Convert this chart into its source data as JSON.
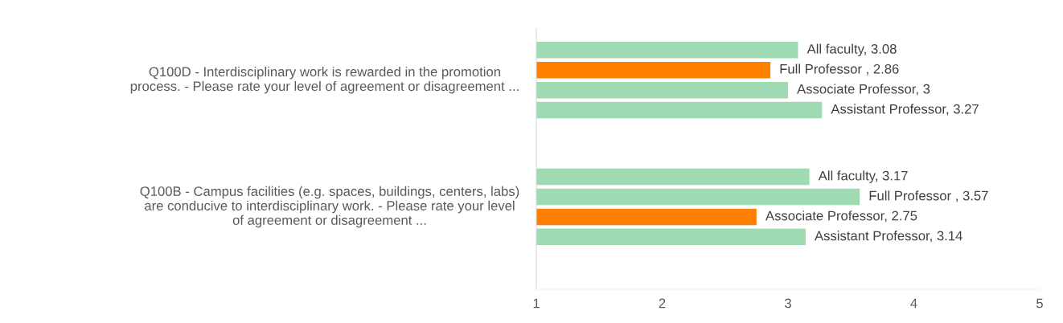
{
  "chart_data": {
    "type": "bar",
    "orientation": "horizontal",
    "categories": [
      "Q100D - Interdisciplinary work is rewarded in the promotion process. - Please rate your level of agreement or disagreement ...",
      "Q100B - Campus facilities (e.g. spaces, buildings, centers, labs) are conducive to interdisciplinary work. - Please rate your level of agreement or disagreement ..."
    ],
    "series": [
      {
        "colors": [
          "#a0dab3",
          "#a0dab3"
        ],
        "values": [
          3.08,
          3.17
        ],
        "value_labels": [
          "All faculty, 3.08",
          "All faculty, 3.17"
        ]
      },
      {
        "colors": [
          "#ff8000",
          "#a0dab3"
        ],
        "values": [
          2.86,
          3.57
        ],
        "value_labels": [
          "Full Professor , 2.86",
          "Full Professor , 3.57"
        ]
      },
      {
        "colors": [
          "#a0dab3",
          "#ff8000"
        ],
        "values": [
          3,
          2.75
        ],
        "value_labels": [
          "Associate Professor, 3",
          "Associate Professor, 2.75"
        ]
      },
      {
        "colors": [
          "#a0dab3",
          "#a0dab3"
        ],
        "values": [
          3.27,
          3.14
        ],
        "value_labels": [
          "Assistant Professor, 3.27",
          "Assistant Professor, 3.14"
        ]
      }
    ],
    "xlim": [
      1,
      5
    ],
    "xticks": [
      1,
      2,
      3,
      4,
      5
    ],
    "grid": false
  }
}
